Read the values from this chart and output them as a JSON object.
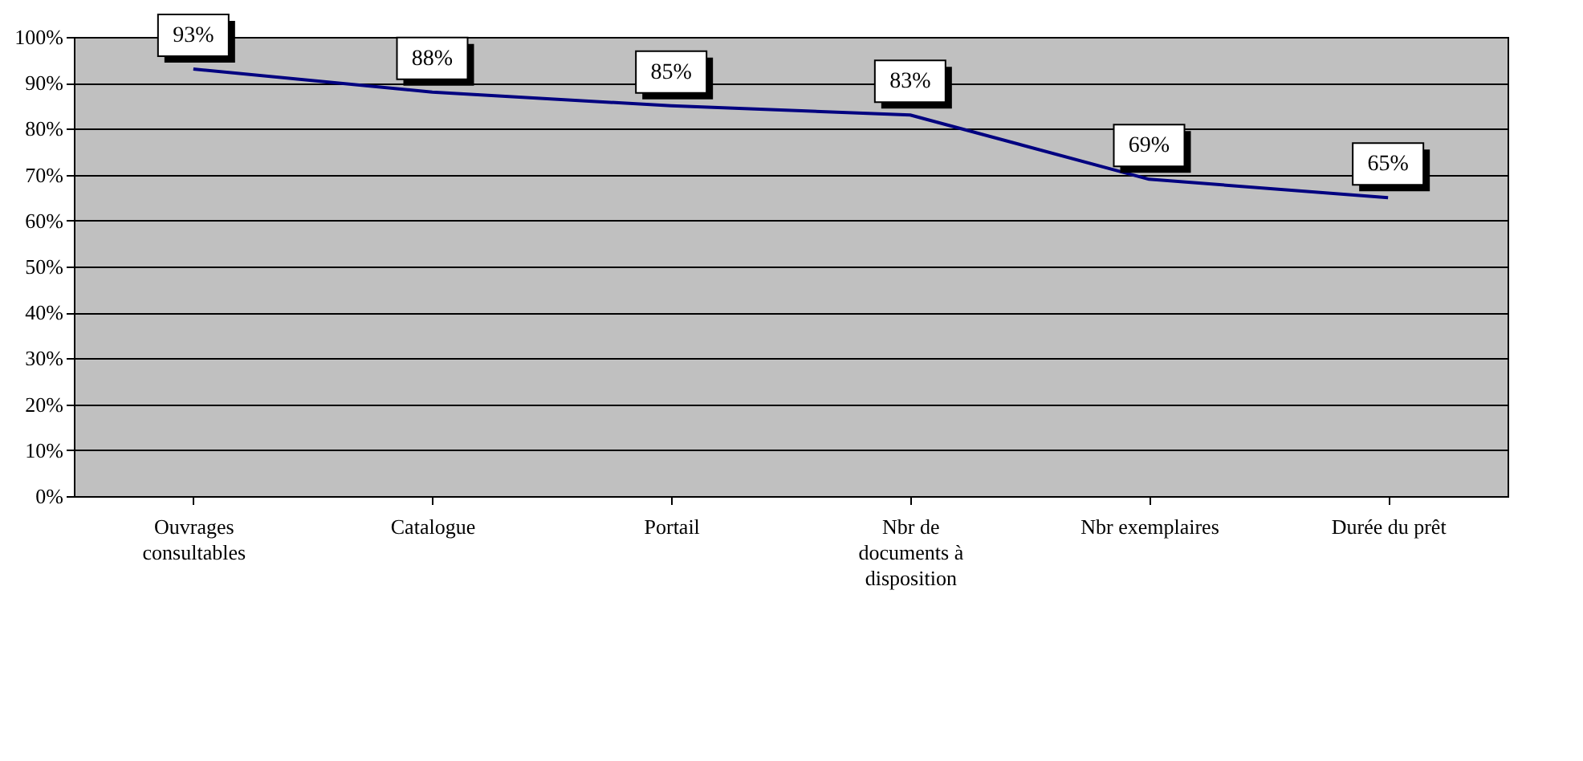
{
  "chart_data": {
    "type": "line",
    "categories": [
      "Ouvrages\nconsultables",
      "Catalogue",
      "Portail",
      "Nbr de\ndocuments à\ndisposition",
      "Nbr exemplaires",
      "Durée du prêt"
    ],
    "series": [
      {
        "color": "#000080",
        "values": [
          93,
          88,
          85,
          83,
          69,
          65
        ],
        "value_labels": [
          "93%",
          "88%",
          "85%",
          "83%",
          "69%",
          "65%"
        ]
      }
    ],
    "ylim": [
      0,
      100
    ],
    "yticks": [
      {
        "value": 0,
        "label": "0%"
      },
      {
        "value": 10,
        "label": "10%"
      },
      {
        "value": 20,
        "label": "20%"
      },
      {
        "value": 30,
        "label": "30%"
      },
      {
        "value": 40,
        "label": "40%"
      },
      {
        "value": 50,
        "label": "50%"
      },
      {
        "value": 60,
        "label": "60%"
      },
      {
        "value": 70,
        "label": "70%"
      },
      {
        "value": 80,
        "label": "80%"
      },
      {
        "value": 90,
        "label": "90%"
      },
      {
        "value": 100,
        "label": "100%"
      }
    ],
    "grid": "y",
    "legend": false,
    "marker": "none",
    "line_style": "solid"
  }
}
